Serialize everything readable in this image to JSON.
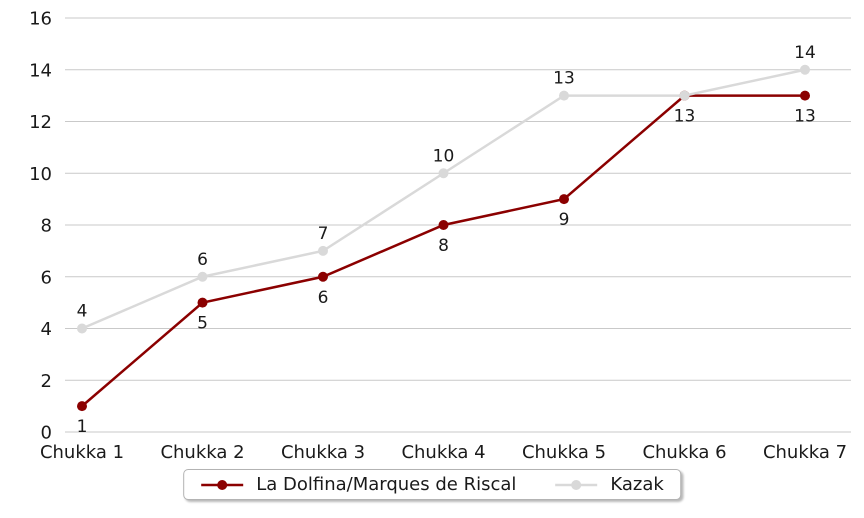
{
  "chart_data": {
    "type": "line",
    "title": "",
    "xlabel": "",
    "ylabel": "",
    "categories": [
      "Chukka 1",
      "Chukka 2",
      "Chukka 3",
      "Chukka 4",
      "Chukka 5",
      "Chukka 6",
      "Chukka 7"
    ],
    "series": [
      {
        "name": "La Dolfina/Marques de Riscal",
        "color": "#8b0000",
        "values": [
          1,
          5,
          6,
          8,
          9,
          13,
          13
        ],
        "point_labels": [
          "1",
          "5",
          "6",
          "8",
          "9",
          "13",
          "13"
        ],
        "label_position": "below"
      },
      {
        "name": "Kazak",
        "color": "#d9d9d9",
        "values": [
          4,
          6,
          7,
          10,
          13,
          13,
          14
        ],
        "point_labels": [
          "4",
          "6",
          "7",
          "10",
          "13",
          null,
          "14"
        ],
        "label_position": "above"
      }
    ],
    "ylim": [
      0,
      16
    ],
    "yticks": [
      0,
      2,
      4,
      6,
      8,
      10,
      12,
      14,
      16
    ],
    "grid": "horizontal",
    "legend_position": "bottom-center",
    "colors": {
      "grid": "#c9c9c9",
      "text": "#1a1a1a",
      "background": "#ffffff"
    }
  }
}
